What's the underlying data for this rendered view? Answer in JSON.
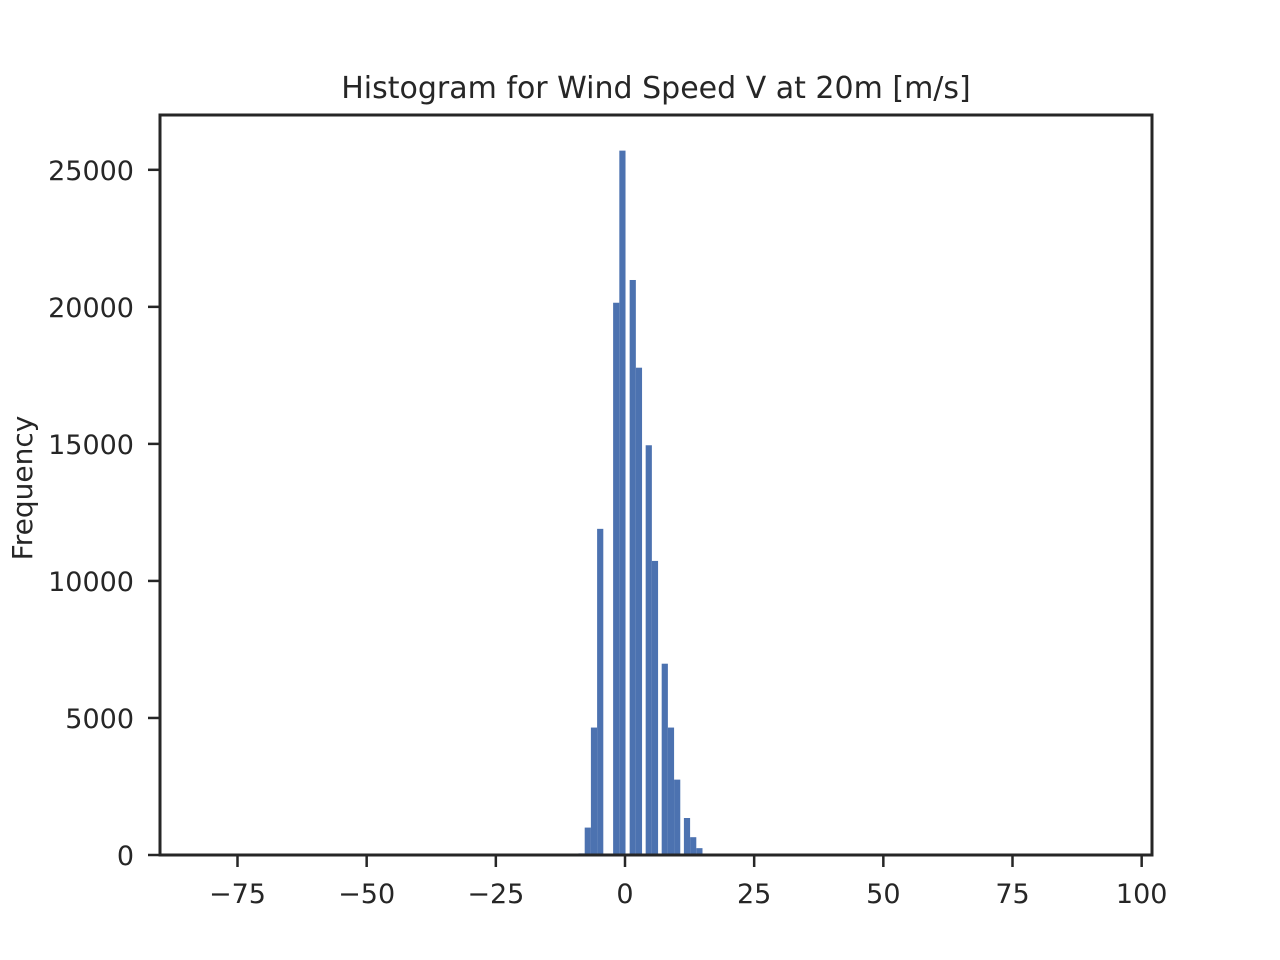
{
  "chart_data": {
    "type": "bar",
    "title": "Histogram for Wind Speed V at 20m [m/s]",
    "xlabel": "",
    "ylabel": "Frequency",
    "xlim": [
      -90,
      102
    ],
    "ylim": [
      0,
      27000
    ],
    "xticks": [
      -75,
      -50,
      -25,
      0,
      25,
      50,
      75,
      100
    ],
    "xtick_labels": [
      "−75",
      "−50",
      "−25",
      "0",
      "25",
      "50",
      "75",
      "100"
    ],
    "yticks": [
      0,
      5000,
      10000,
      15000,
      20000,
      25000
    ],
    "ytick_labels": [
      "0",
      "5000",
      "10000",
      "15000",
      "20000",
      "25000"
    ],
    "bin_width": 1.2,
    "bins": [
      {
        "x": -9.0,
        "value": 60
      },
      {
        "x": -7.8,
        "value": 1000
      },
      {
        "x": -6.6,
        "value": 4650
      },
      {
        "x": -5.4,
        "value": 11900
      },
      {
        "x": -4.2,
        "value": 0
      },
      {
        "x": -2.3,
        "value": 20150
      },
      {
        "x": -1.1,
        "value": 25700
      },
      {
        "x": 0.9,
        "value": 20980
      },
      {
        "x": 2.1,
        "value": 17780
      },
      {
        "x": 4.0,
        "value": 14950
      },
      {
        "x": 5.2,
        "value": 10730
      },
      {
        "x": 7.1,
        "value": 6980
      },
      {
        "x": 8.3,
        "value": 4650
      },
      {
        "x": 9.5,
        "value": 2750
      },
      {
        "x": 11.4,
        "value": 1350
      },
      {
        "x": 12.6,
        "value": 650
      },
      {
        "x": 13.8,
        "value": 250
      },
      {
        "x": 15.7,
        "value": 50
      }
    ],
    "bar_color": "#4c72b0",
    "grid": false,
    "legend": false
  }
}
